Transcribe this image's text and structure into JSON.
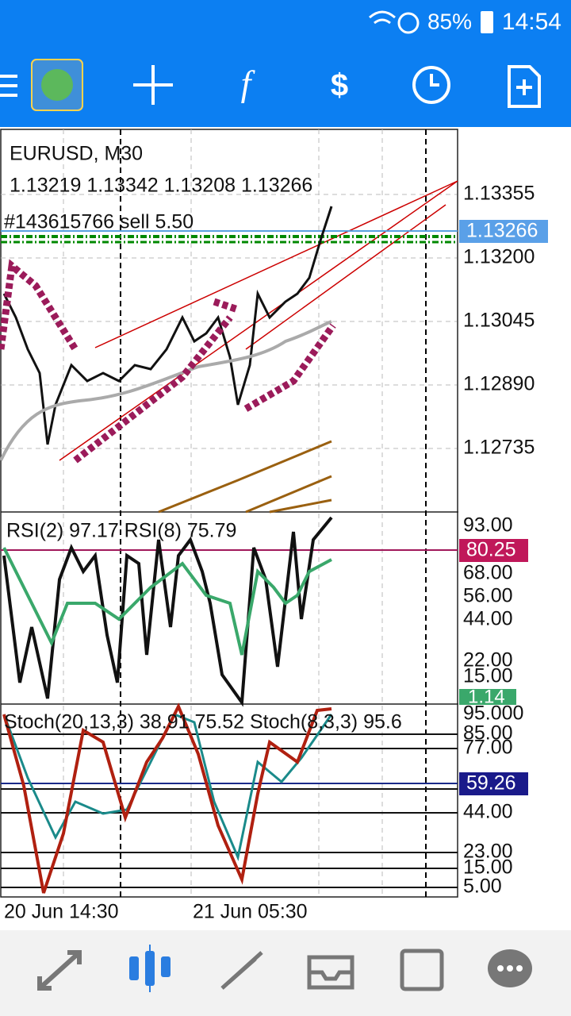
{
  "status_bar": {
    "battery": "85%",
    "time": "14:54"
  },
  "chart": {
    "symbol": "EURUSD, M30",
    "ohlc": "1.13219 1.13342 1.13208 1.13266",
    "order": "#143615766 sell 5.50",
    "price_labels": [
      "1.13355",
      "1.13200",
      "1.13045",
      "1.12890",
      "1.12735"
    ],
    "current_price": "1.13266"
  },
  "rsi": {
    "title": "RSI(2) 97.17 RSI(8) 75.79",
    "labels": [
      "93.00",
      "68.00",
      "56.00",
      "44.00",
      "22.00",
      "15.00"
    ],
    "level": "80.25",
    "current": "1.14"
  },
  "stoch": {
    "title": "Stoch(20,13,3) 38.91 75.52 Stoch(8,3,3) 95.6",
    "labels": [
      "95.000",
      "85.00",
      "77.00",
      "44.00",
      "23.00",
      "15.00",
      "5.00"
    ],
    "level": "59.26"
  },
  "time_axis": [
    "20 Jun 14:30",
    "21 Jun 05:30"
  ]
}
